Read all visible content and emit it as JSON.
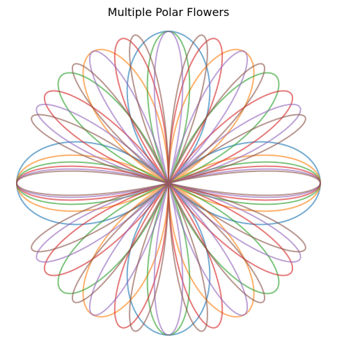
{
  "chart_data": {
    "type": "polar-line",
    "title": "Multiple Polar Flowers",
    "axes_visible": false,
    "grid": false,
    "equation": "r = |cos(k * theta)|",
    "r_max": 1.0,
    "series": [
      {
        "k": 2,
        "color": "#1f77b4"
      },
      {
        "k": 3,
        "color": "#ff7f0e"
      },
      {
        "k": 4,
        "color": "#2ca02c"
      },
      {
        "k": 5,
        "color": "#d62728"
      },
      {
        "k": 6,
        "color": "#9467bd"
      },
      {
        "k": 7,
        "color": "#8c564b"
      }
    ]
  }
}
